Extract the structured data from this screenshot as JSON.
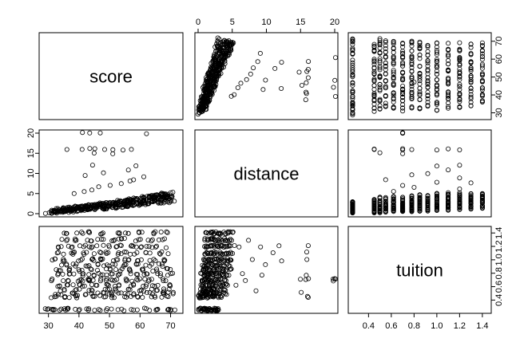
{
  "chart_data": {
    "type": "scatter",
    "subtype": "pairs-matrix",
    "variables": [
      {
        "name": "score",
        "lim": [
          28,
          73
        ],
        "ticks": [
          30,
          40,
          50,
          60,
          70
        ]
      },
      {
        "name": "distance",
        "lim": [
          0,
          20
        ],
        "ticks": [
          0,
          5,
          10,
          15,
          20
        ]
      },
      {
        "name": "tuition",
        "lim": [
          0.25,
          1.45
        ],
        "ticks": [
          0.4,
          0.6,
          0.8,
          1.0,
          1.2,
          1.4
        ]
      }
    ],
    "tick_labels": {
      "score": [
        "30",
        "40",
        "50",
        "60",
        "70"
      ],
      "distance": [
        "0",
        "5",
        "10",
        "15",
        "20"
      ],
      "tuition": [
        "0.4",
        "0.6",
        "0.8",
        "1.0",
        "1.2",
        "1.4"
      ]
    },
    "grid": false,
    "legend": "none",
    "points": [
      [
        30.0,
        0.2,
        0.26
      ],
      [
        31.5,
        0.4,
        0.26
      ],
      [
        33.0,
        0.6,
        0.26
      ],
      [
        35.0,
        0.8,
        0.26
      ],
      [
        37.0,
        1.0,
        0.26
      ],
      [
        40.0,
        1.2,
        0.26
      ],
      [
        43.0,
        1.4,
        0.26
      ],
      [
        46.0,
        1.6,
        0.26
      ],
      [
        50.0,
        1.8,
        0.26
      ],
      [
        54.0,
        2.0,
        0.26
      ],
      [
        58.0,
        2.2,
        0.26
      ],
      [
        62.0,
        2.4,
        0.26
      ],
      [
        66.0,
        2.6,
        0.26
      ],
      [
        69.0,
        2.8,
        0.26
      ],
      [
        70.5,
        3.0,
        0.26
      ],
      [
        32.0,
        0.3,
        0.45
      ],
      [
        36.0,
        0.5,
        0.45
      ],
      [
        40.0,
        0.7,
        0.45
      ],
      [
        44.0,
        1.0,
        0.45
      ],
      [
        48.0,
        1.3,
        0.45
      ],
      [
        52.0,
        1.6,
        0.45
      ],
      [
        56.0,
        2.0,
        0.45
      ],
      [
        60.0,
        2.5,
        0.45
      ],
      [
        64.0,
        3.0,
        0.45
      ],
      [
        68.0,
        3.5,
        0.45
      ],
      [
        33.0,
        0.4,
        0.5
      ],
      [
        38.0,
        0.6,
        0.5
      ],
      [
        43.0,
        0.9,
        0.5
      ],
      [
        47.0,
        1.2,
        0.5
      ],
      [
        51.0,
        1.5,
        0.5
      ],
      [
        55.0,
        1.8,
        0.5
      ],
      [
        59.0,
        2.2,
        0.5
      ],
      [
        63.0,
        2.6,
        0.5
      ],
      [
        67.0,
        3.2,
        0.5
      ],
      [
        70.0,
        4.0,
        0.5
      ],
      [
        34.0,
        0.5,
        0.55
      ],
      [
        39.0,
        0.8,
        0.55
      ],
      [
        44.0,
        1.1,
        0.55
      ],
      [
        49.0,
        1.4,
        0.55
      ],
      [
        53.0,
        1.7,
        0.55
      ],
      [
        57.0,
        2.1,
        0.55
      ],
      [
        61.0,
        2.5,
        0.55
      ],
      [
        65.0,
        3.0,
        0.55
      ],
      [
        69.0,
        3.8,
        0.55
      ],
      [
        33.0,
        0.6,
        0.62
      ],
      [
        37.0,
        0.9,
        0.62
      ],
      [
        41.0,
        1.2,
        0.62
      ],
      [
        45.0,
        1.5,
        0.62
      ],
      [
        49.0,
        1.9,
        0.62
      ],
      [
        53.0,
        2.3,
        0.62
      ],
      [
        57.0,
        2.7,
        0.62
      ],
      [
        61.0,
        3.1,
        0.62
      ],
      [
        65.0,
        3.6,
        0.62
      ],
      [
        69.0,
        4.2,
        0.62
      ],
      [
        32.0,
        0.5,
        0.7
      ],
      [
        36.0,
        0.8,
        0.7
      ],
      [
        40.0,
        1.1,
        0.7
      ],
      [
        44.0,
        1.4,
        0.7
      ],
      [
        48.0,
        1.7,
        0.7
      ],
      [
        52.0,
        2.0,
        0.7
      ],
      [
        56.0,
        2.4,
        0.7
      ],
      [
        60.0,
        2.8,
        0.7
      ],
      [
        64.0,
        3.3,
        0.7
      ],
      [
        68.0,
        3.9,
        0.7
      ],
      [
        34.0,
        0.6,
        0.78
      ],
      [
        38.0,
        0.9,
        0.78
      ],
      [
        42.0,
        1.3,
        0.78
      ],
      [
        46.0,
        1.6,
        0.78
      ],
      [
        50.0,
        2.0,
        0.78
      ],
      [
        54.0,
        2.4,
        0.78
      ],
      [
        58.0,
        2.8,
        0.78
      ],
      [
        62.0,
        3.2,
        0.78
      ],
      [
        66.0,
        3.7,
        0.78
      ],
      [
        70.0,
        4.3,
        0.78
      ],
      [
        33.0,
        0.7,
        0.85
      ],
      [
        37.0,
        1.0,
        0.85
      ],
      [
        41.0,
        1.4,
        0.85
      ],
      [
        45.0,
        1.8,
        0.85
      ],
      [
        49.0,
        2.2,
        0.85
      ],
      [
        53.0,
        2.6,
        0.85
      ],
      [
        57.0,
        3.0,
        0.85
      ],
      [
        61.0,
        3.5,
        0.85
      ],
      [
        65.0,
        4.0,
        0.85
      ],
      [
        69.0,
        4.6,
        0.85
      ],
      [
        35.0,
        0.8,
        0.92
      ],
      [
        39.0,
        1.2,
        0.92
      ],
      [
        43.0,
        1.6,
        0.92
      ],
      [
        47.0,
        2.0,
        0.92
      ],
      [
        51.0,
        2.4,
        0.92
      ],
      [
        55.0,
        2.8,
        0.92
      ],
      [
        59.0,
        3.2,
        0.92
      ],
      [
        63.0,
        3.8,
        0.92
      ],
      [
        67.0,
        4.4,
        0.92
      ],
      [
        32.0,
        0.9,
        1.0
      ],
      [
        36.0,
        1.3,
        1.0
      ],
      [
        40.0,
        1.7,
        1.0
      ],
      [
        44.0,
        2.1,
        1.0
      ],
      [
        48.0,
        2.5,
        1.0
      ],
      [
        52.0,
        2.9,
        1.0
      ],
      [
        56.0,
        3.3,
        1.0
      ],
      [
        60.0,
        3.8,
        1.0
      ],
      [
        64.0,
        4.3,
        1.0
      ],
      [
        68.0,
        4.9,
        1.0
      ],
      [
        34.0,
        1.0,
        1.1
      ],
      [
        38.0,
        1.4,
        1.1
      ],
      [
        42.0,
        1.8,
        1.1
      ],
      [
        46.0,
        2.2,
        1.1
      ],
      [
        50.0,
        2.6,
        1.1
      ],
      [
        54.0,
        3.0,
        1.1
      ],
      [
        58.0,
        3.5,
        1.1
      ],
      [
        62.0,
        4.0,
        1.1
      ],
      [
        66.0,
        4.6,
        1.1
      ],
      [
        70.0,
        5.2,
        1.1
      ],
      [
        33.0,
        1.1,
        1.2
      ],
      [
        37.0,
        1.5,
        1.2
      ],
      [
        41.0,
        1.9,
        1.2
      ],
      [
        45.0,
        2.3,
        1.2
      ],
      [
        49.0,
        2.7,
        1.2
      ],
      [
        53.0,
        3.1,
        1.2
      ],
      [
        57.0,
        3.6,
        1.2
      ],
      [
        61.0,
        4.1,
        1.2
      ],
      [
        65.0,
        4.7,
        1.2
      ],
      [
        69.0,
        5.3,
        1.2
      ],
      [
        35.0,
        1.2,
        1.3
      ],
      [
        39.0,
        1.6,
        1.3
      ],
      [
        43.0,
        2.0,
        1.3
      ],
      [
        47.0,
        2.4,
        1.3
      ],
      [
        51.0,
        2.8,
        1.3
      ],
      [
        55.0,
        3.2,
        1.3
      ],
      [
        59.0,
        3.7,
        1.3
      ],
      [
        63.0,
        4.2,
        1.3
      ],
      [
        67.0,
        4.8,
        1.3
      ],
      [
        36.0,
        1.3,
        1.4
      ],
      [
        40.0,
        1.7,
        1.4
      ],
      [
        44.0,
        2.1,
        1.4
      ],
      [
        48.0,
        2.5,
        1.4
      ],
      [
        52.0,
        2.9,
        1.4
      ],
      [
        56.0,
        3.3,
        1.4
      ],
      [
        60.0,
        3.8,
        1.4
      ],
      [
        64.0,
        4.3,
        1.4
      ],
      [
        68.0,
        4.9,
        1.4
      ],
      [
        38.0,
        5.0,
        1.1
      ],
      [
        41.0,
        5.5,
        0.62
      ],
      [
        44.0,
        6.0,
        1.2
      ],
      [
        47.0,
        6.5,
        0.8
      ],
      [
        50.0,
        7.0,
        0.7
      ],
      [
        53.0,
        7.5,
        1.3
      ],
      [
        56.0,
        8.0,
        1.0
      ],
      [
        59.0,
        8.5,
        0.55
      ],
      [
        62.0,
        9.0,
        1.2
      ],
      [
        42.0,
        9.5,
        0.78
      ],
      [
        48.0,
        10.0,
        0.92
      ],
      [
        55.0,
        11.0,
        1.1
      ],
      [
        58.0,
        12.0,
        1.2
      ],
      [
        45.0,
        12.0,
        1.0
      ],
      [
        36.0,
        16.0,
        0.45
      ],
      [
        40.0,
        16.0,
        0.45
      ],
      [
        43.0,
        16.0,
        0.7
      ],
      [
        46.0,
        16.0,
        1.0
      ],
      [
        49.0,
        16.0,
        0.78
      ],
      [
        52.0,
        16.0,
        1.2
      ],
      [
        55.0,
        16.0,
        1.1
      ],
      [
        58.0,
        16.0,
        0.7
      ],
      [
        44.0,
        15.0,
        0.7
      ],
      [
        52.0,
        15.0,
        0.5
      ],
      [
        40.0,
        20.0,
        0.7
      ],
      [
        44.0,
        20.0,
        0.7
      ],
      [
        48.0,
        20.0,
        0.7
      ],
      [
        61.0,
        20.0,
        0.7
      ]
    ]
  }
}
